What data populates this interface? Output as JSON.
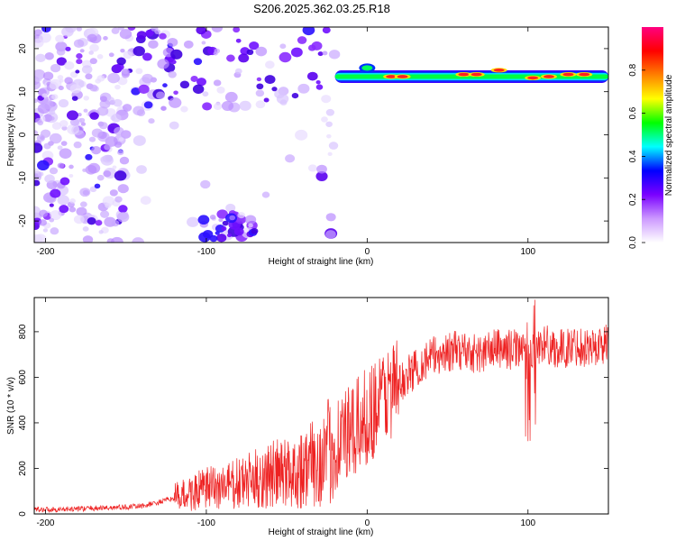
{
  "page_title": "S206.2025.362.03.25.R18",
  "chart_data": [
    {
      "type": "heatmap",
      "title": "S206.2025.362.03.25.R18",
      "xlabel": "Height of straight line (km)",
      "ylabel": "Frequency (Hz)",
      "xlim": [
        -207,
        150
      ],
      "ylim": [
        -25,
        25
      ],
      "xticks": [
        -200,
        -100,
        0,
        100
      ],
      "yticks": [
        -20,
        -10,
        0,
        10,
        20
      ],
      "colorbar": {
        "label": "Normalized spectral amplitude",
        "range": [
          0.0,
          1.0
        ],
        "ticks": [
          0.0,
          0.2,
          0.4,
          0.6,
          0.8
        ],
        "colormap": [
          "#ffffff",
          "#cc99ff",
          "#7a00ff",
          "#0000ff",
          "#00ffff",
          "#00ff00",
          "#ffff00",
          "#ff8000",
          "#ff0000",
          "#ff0080"
        ]
      },
      "features": [
        {
          "name": "narrow band",
          "x_range": [
            -20,
            150
          ],
          "freq_hz": 13.5,
          "amplitude": 0.85
        },
        {
          "name": "broadband noise",
          "x_range": [
            -207,
            -20
          ],
          "freq_range_hz": [
            -25,
            25
          ],
          "amplitude": 0.3
        },
        {
          "name": "low-frequency patch",
          "x_range": [
            -102,
            -70
          ],
          "freq_range_hz": [
            -25,
            -18
          ],
          "amplitude": 0.4
        }
      ]
    },
    {
      "type": "line",
      "xlabel": "Height of straight line (km)",
      "ylabel": "SNR (10 * v/v)",
      "xlim": [
        -207,
        150
      ],
      "ylim": [
        0,
        950
      ],
      "xticks": [
        -200,
        -100,
        0,
        100
      ],
      "yticks": [
        0,
        200,
        400,
        600,
        800
      ],
      "series": [
        {
          "name": "SNR",
          "color": "#ee2222",
          "x": [
            -207,
            -190,
            -170,
            -150,
            -140,
            -130,
            -120,
            -110,
            -100,
            -90,
            -80,
            -70,
            -60,
            -50,
            -40,
            -30,
            -25,
            -20,
            -15,
            -10,
            -5,
            0,
            5,
            10,
            20,
            30,
            40,
            50,
            60,
            70,
            80,
            90,
            95,
            100,
            105,
            110,
            120,
            130,
            140,
            150
          ],
          "values": [
            20,
            20,
            25,
            30,
            35,
            50,
            70,
            90,
            110,
            120,
            130,
            150,
            170,
            180,
            200,
            230,
            260,
            300,
            350,
            330,
            390,
            430,
            470,
            520,
            570,
            640,
            690,
            710,
            720,
            700,
            730,
            720,
            740,
            650,
            730,
            750,
            720,
            740,
            730,
            750
          ]
        }
      ]
    }
  ]
}
